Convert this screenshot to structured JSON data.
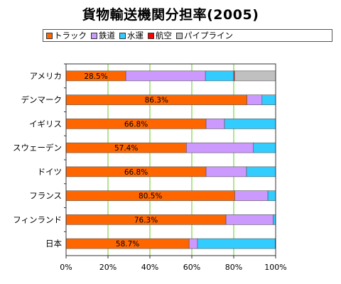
{
  "title": "貨物輸送機関分担率(2005)",
  "legend": [
    {
      "name": "トラック",
      "color": "#FF6600"
    },
    {
      "name": "鉄道",
      "color": "#CC99FF"
    },
    {
      "name": "水運",
      "color": "#33CCFF"
    },
    {
      "name": "航空",
      "color": "#FF0000"
    },
    {
      "name": "パイプライン",
      "color": "#C0C0C0"
    }
  ],
  "chart_data": {
    "type": "bar",
    "orientation": "horizontal",
    "stacked": "percent",
    "title": "貨物輸送機関分担率(2005)",
    "categories": [
      "アメリカ",
      "デンマーク",
      "イギリス",
      "スウェーデン",
      "ドイツ",
      "フランス",
      "フィンランド",
      "日本"
    ],
    "series": [
      {
        "name": "トラック",
        "color": "#FF6600",
        "values": [
          28.5,
          86.3,
          66.8,
          57.4,
          66.8,
          80.5,
          76.3,
          58.7
        ]
      },
      {
        "name": "鉄道",
        "color": "#CC99FF",
        "values": [
          38.0,
          7.2,
          8.8,
          32.0,
          19.3,
          15.8,
          22.5,
          4.0
        ]
      },
      {
        "name": "水運",
        "color": "#33CCFF",
        "values": [
          13.5,
          6.5,
          24.4,
          10.6,
          13.9,
          3.7,
          1.2,
          37.1
        ]
      },
      {
        "name": "航空",
        "color": "#FF0000",
        "values": [
          0.4,
          0.0,
          0.0,
          0.0,
          0.0,
          0.0,
          0.0,
          0.2
        ]
      },
      {
        "name": "パイプライン",
        "color": "#C0C0C0",
        "values": [
          19.6,
          0.0,
          0.0,
          0.0,
          0.0,
          0.0,
          0.0,
          0.0
        ]
      }
    ],
    "data_labels": [
      "28.5%",
      "86.3%",
      "66.8%",
      "57.4%",
      "66.8%",
      "80.5%",
      "76.3%",
      "58.7%"
    ],
    "xticks": [
      "0%",
      "20%",
      "40%",
      "60%",
      "80%",
      "100%"
    ],
    "xlim": [
      0,
      100
    ],
    "grid": "vertical",
    "legend_position": "top"
  }
}
